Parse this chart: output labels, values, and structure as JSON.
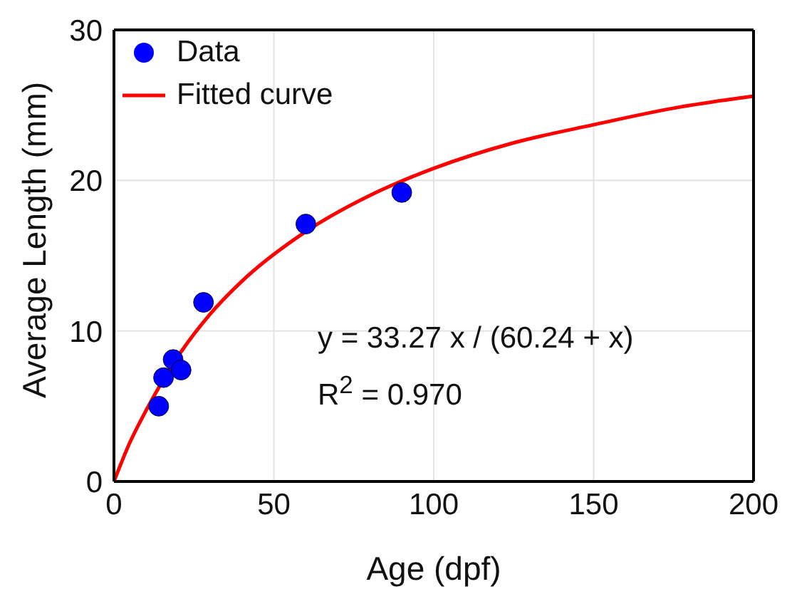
{
  "chart_data": {
    "type": "scatter",
    "xlabel": "Age (dpf)",
    "ylabel": "Average Length (mm)",
    "xlim": [
      0,
      200
    ],
    "xticks": [
      0,
      50,
      100,
      150,
      200
    ],
    "ylim": [
      0,
      30
    ],
    "yticks": [
      0,
      10,
      20,
      30
    ],
    "grid": true,
    "legend": "top left",
    "marker": "circle",
    "series": [
      {
        "name": "Data",
        "color": "#0000ff",
        "x": [
          14,
          15.5,
          18.5,
          21,
          28,
          60,
          90
        ],
        "values": [
          5.0,
          6.9,
          8.1,
          7.4,
          11.9,
          17.1,
          19.2
        ]
      },
      {
        "name": "Fitted curve",
        "type": "line",
        "color": "#ff0000",
        "marker": "none",
        "line_style": "solid",
        "x": [
          0,
          5,
          10,
          20,
          30,
          40,
          60,
          80,
          100,
          125,
          150,
          175,
          200
        ],
        "values": [
          0,
          2.6,
          4.7,
          8.3,
          11.1,
          13.3,
          16.6,
          19.0,
          20.8,
          22.5,
          23.7,
          24.8,
          25.6
        ]
      }
    ],
    "annotations": [
      "y = 33.27 x / (60.24 + x)",
      "R$^{2}$ = 0.970"
    ]
  }
}
